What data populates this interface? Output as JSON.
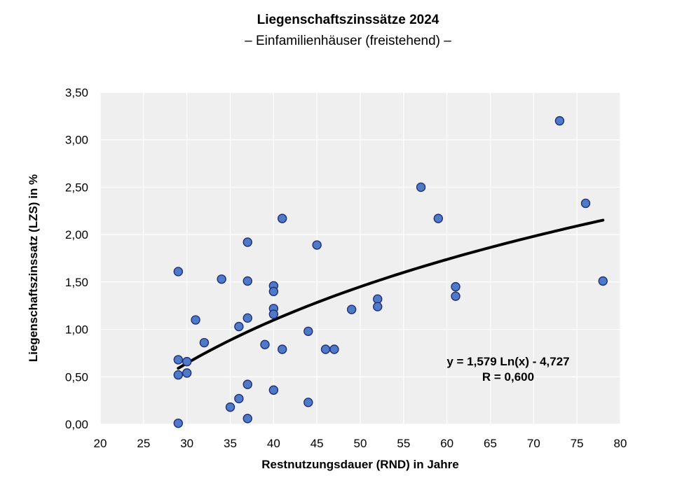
{
  "chart_data": {
    "type": "scatter",
    "title": "Liegenschaftszinssätze 2024",
    "subtitle": "– Einfamilienhäuser (freistehend) –",
    "xlabel": "Restnutzungsdauer (RND) in Jahre",
    "ylabel": "Liegenschaftszinssatz (LZS) in %",
    "xlim": [
      20,
      80
    ],
    "ylim": [
      0,
      3.5
    ],
    "x_ticks": [
      "20",
      "25",
      "30",
      "35",
      "40",
      "45",
      "50",
      "55",
      "60",
      "65",
      "70",
      "75",
      "80"
    ],
    "y_ticks": [
      "0,00",
      "0,50",
      "1,00",
      "1,50",
      "2,00",
      "2,50",
      "3,00",
      "3,50"
    ],
    "grid": true,
    "background": "#efefef",
    "point_color": "#4f7ac7",
    "point_edge_color": "#1f2f7a",
    "trend_color": "#000000",
    "series": [
      {
        "x": [
          29,
          29,
          29,
          29,
          30,
          30,
          31,
          32,
          34,
          35,
          36,
          36,
          37,
          37,
          37,
          37,
          37,
          39,
          40,
          40,
          40,
          40,
          40,
          41,
          41,
          44,
          44,
          45,
          46,
          47,
          49,
          52,
          52,
          57,
          59,
          61,
          61,
          73,
          76,
          78
        ],
        "y": [
          1.61,
          0.68,
          0.52,
          0.01,
          0.66,
          0.54,
          1.1,
          0.86,
          1.53,
          0.18,
          1.03,
          0.27,
          1.92,
          1.51,
          1.12,
          0.42,
          0.06,
          0.84,
          1.46,
          1.4,
          1.22,
          1.16,
          0.36,
          2.17,
          0.79,
          0.98,
          0.23,
          1.89,
          0.79,
          0.79,
          1.21,
          1.32,
          1.24,
          2.5,
          2.17,
          1.45,
          1.35,
          3.2,
          2.33,
          1.51
        ]
      }
    ],
    "trendline": {
      "type": "logarithmic",
      "a": 1.579,
      "b": -4.727,
      "x_range": [
        29,
        78
      ],
      "equation_label": "y = 1,579 Ln(x) - 4,727",
      "r_label": "R = 0,600"
    }
  }
}
